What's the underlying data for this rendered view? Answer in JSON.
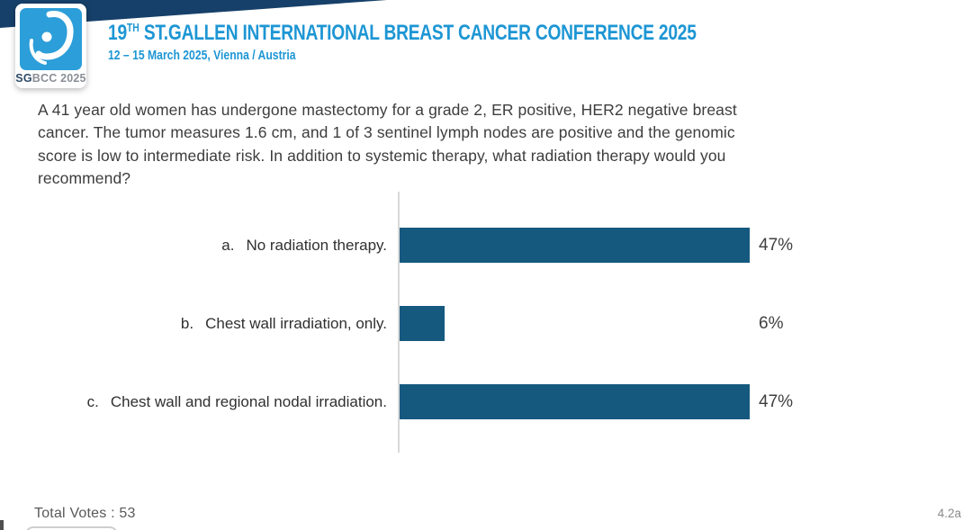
{
  "header": {
    "title_num": "19",
    "title_sup": "TH",
    "title_rest": " ST.GALLEN INTERNATIONAL BREAST CANCER CONFERENCE 2025",
    "subtitle": "12 – 15 March 2025, Vienna / Austria",
    "logo_bold": "SG",
    "logo_rest": "BCC 2025",
    "title_color": "#1d96d4",
    "ribbon_color": "#164069",
    "logo_square_color": "#2c9ed9"
  },
  "question": {
    "lines": [
      "A 41 year old women has undergone mastectomy for a grade 2, ER positive, HER2 negative breast",
      "cancer. The tumor measures 1.6 cm, and 1 of 3 sentinel lymph nodes are positive and the genomic",
      "score is low to intermediate risk. In addition to systemic therapy, what radiation therapy would you",
      "recommend?"
    ]
  },
  "chart_data": {
    "type": "bar",
    "orientation": "horizontal",
    "title": "",
    "categories": [
      "a. No radiation therapy.",
      "b. Chest wall irradiation, only.",
      "c. Chest wall and regional nodal irradiation."
    ],
    "values": [
      47,
      6,
      47
    ],
    "unit": "%",
    "xlim": [
      0,
      47
    ],
    "grid": false,
    "legend": false,
    "bar_color": "#15597f",
    "axis_color": "#d9d9d9",
    "options": [
      {
        "letter": "a.",
        "label": "No radiation therapy.",
        "value": 47,
        "value_label": "47%"
      },
      {
        "letter": "b.",
        "label": "Chest wall irradiation, only.",
        "value": 6,
        "value_label": "6%"
      },
      {
        "letter": "c.",
        "label": "Chest wall and regional nodal irradiation.",
        "value": 47,
        "value_label": "47%"
      }
    ]
  },
  "footer": {
    "total_votes": "Total Votes : 53",
    "slide_ref": "4.2a"
  }
}
